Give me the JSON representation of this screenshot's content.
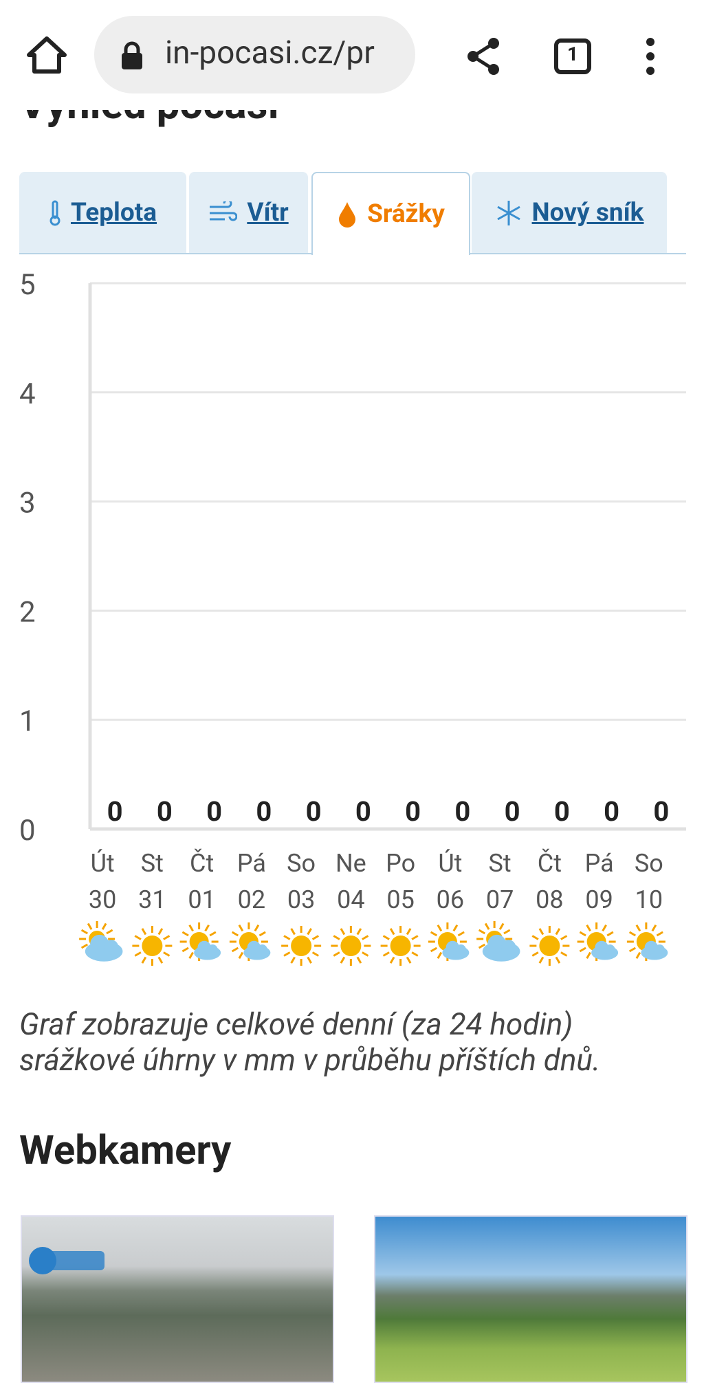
{
  "browser": {
    "url": "in-pocasi.cz/pr",
    "tab_count": "1"
  },
  "heading": "Výhled počasí",
  "tabs": [
    "Teplota",
    "Vítr",
    "Srážky",
    "Nový sník"
  ],
  "chart_data": {
    "type": "bar",
    "categories": [
      "Út",
      "St",
      "Čt",
      "Pá",
      "So",
      "Ne",
      "Po",
      "Út",
      "St",
      "Čt",
      "Pá",
      "So"
    ],
    "dates": [
      "30",
      "31",
      "01",
      "02",
      "03",
      "04",
      "05",
      "06",
      "07",
      "08",
      "09",
      "10"
    ],
    "values": [
      0,
      0,
      0,
      0,
      0,
      0,
      0,
      0,
      0,
      0,
      0,
      0
    ],
    "color": "#3a8fd0",
    "ylim": [
      0,
      5
    ],
    "yticks": [
      0,
      1,
      2,
      3,
      4,
      5
    ],
    "grid": true
  },
  "caption": "Graf zobrazuje celkové denní (za 24 hodin) srážkové úhrny v mm v průběhu příštích dnů.",
  "webcams_heading": "Webkamery"
}
